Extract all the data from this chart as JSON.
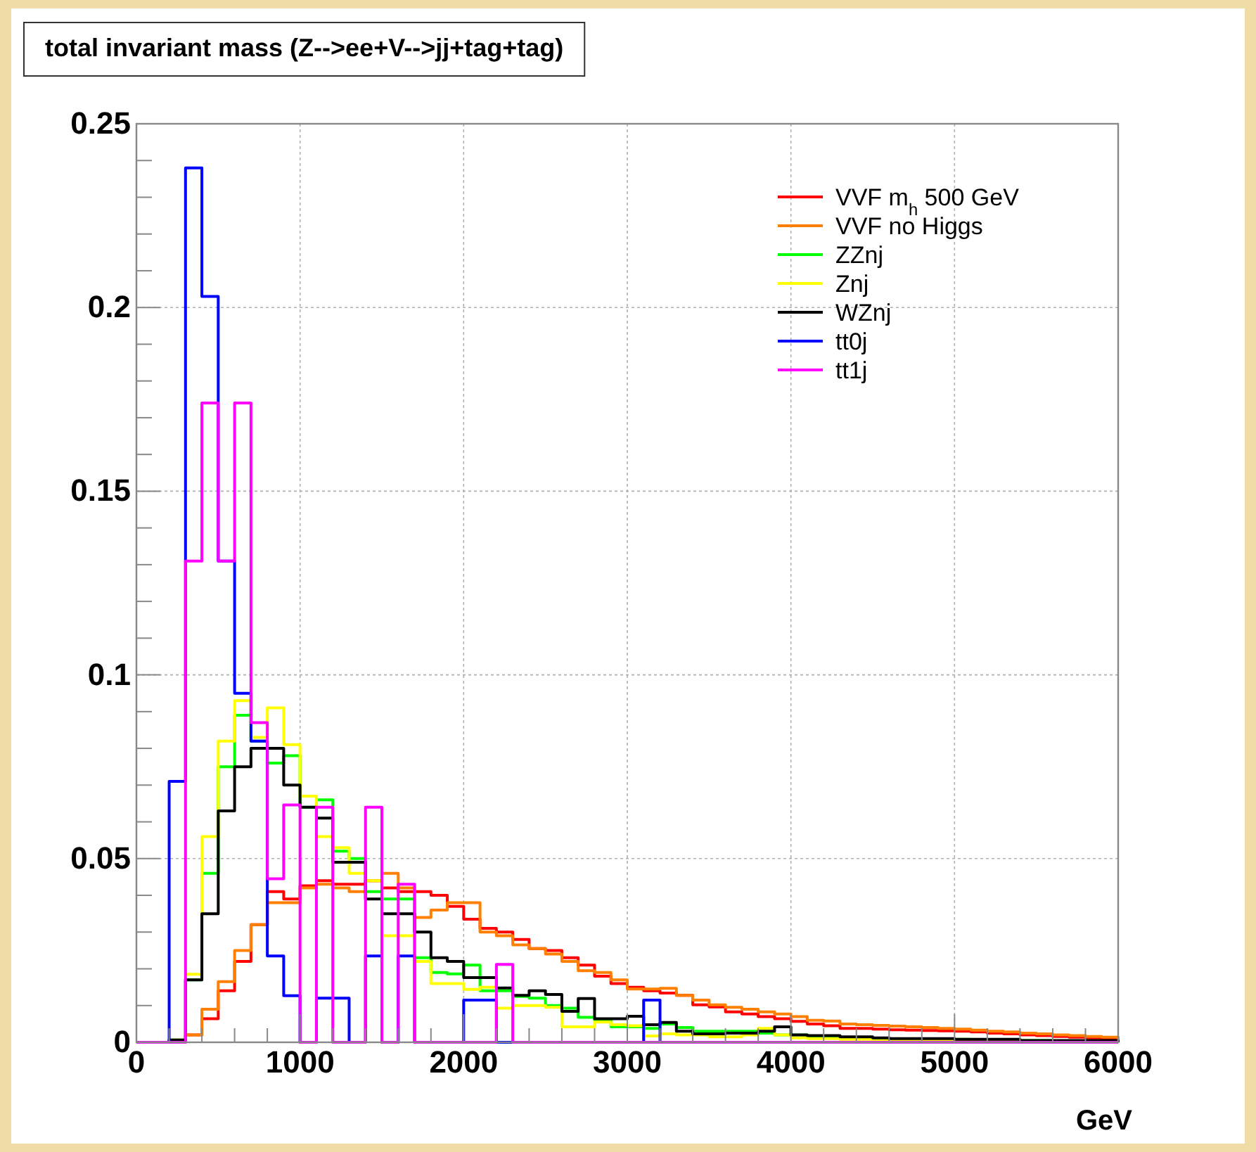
{
  "chart_data": {
    "type": "histogram",
    "title": "total invariant mass (Z-->ee+V-->jj+tag+tag)",
    "xlabel": "GeV",
    "bins": [
      0,
      100,
      200,
      300,
      400,
      500,
      600,
      700,
      800,
      900,
      1000,
      1100,
      1200,
      1300,
      1400,
      1500,
      1600,
      1700,
      1800,
      1900,
      2000,
      2100,
      2200,
      2300,
      2400,
      2500,
      2600,
      2700,
      2800,
      2900,
      3000,
      3100,
      3200,
      3300,
      3400,
      3500,
      3600,
      3700,
      3800,
      3900,
      4000,
      4100,
      4200,
      4300,
      4400,
      4500,
      4600,
      4700,
      4800,
      4900,
      5000,
      5100,
      5200,
      5300,
      5400,
      5500,
      5600,
      5700,
      5800,
      5900,
      6000
    ],
    "xlim": [
      0,
      6000
    ],
    "ylim": [
      0,
      0.25
    ],
    "xticks": [
      0,
      {
        "value": 200,
        "label": null
      },
      {
        "value": 400,
        "label": null
      },
      {
        "value": 600,
        "label": null
      },
      {
        "value": 800,
        "label": null
      },
      1000,
      {
        "value": 1200,
        "label": null
      },
      {
        "value": 1400,
        "label": null
      },
      {
        "value": 1600,
        "label": null
      },
      {
        "value": 1800,
        "label": null
      },
      2000,
      {
        "value": 2200,
        "label": null
      },
      {
        "value": 2400,
        "label": null
      },
      {
        "value": 2600,
        "label": null
      },
      {
        "value": 2800,
        "label": null
      },
      3000,
      {
        "value": 3200,
        "label": null
      },
      {
        "value": 3400,
        "label": null
      },
      {
        "value": 3600,
        "label": null
      },
      {
        "value": 3800,
        "label": null
      },
      4000,
      {
        "value": 4200,
        "label": null
      },
      {
        "value": 4400,
        "label": null
      },
      {
        "value": 4600,
        "label": null
      },
      {
        "value": 4800,
        "label": null
      },
      5000,
      {
        "value": 5200,
        "label": null
      },
      {
        "value": 5400,
        "label": null
      },
      {
        "value": 5600,
        "label": null
      },
      {
        "value": 5800,
        "label": null
      },
      6000
    ],
    "yticks": [
      0,
      {
        "value": 0.01,
        "label": null
      },
      {
        "value": 0.02,
        "label": null
      },
      {
        "value": 0.03,
        "label": null
      },
      {
        "value": 0.04,
        "label": null
      },
      0.05,
      {
        "value": 0.06,
        "label": null
      },
      {
        "value": 0.07,
        "label": null
      },
      {
        "value": 0.08,
        "label": null
      },
      {
        "value": 0.09,
        "label": null
      },
      0.1,
      {
        "value": 0.11,
        "label": null
      },
      {
        "value": 0.12,
        "label": null
      },
      {
        "value": 0.13,
        "label": null
      },
      {
        "value": 0.14,
        "label": null
      },
      0.15,
      {
        "value": 0.16,
        "label": null
      },
      {
        "value": 0.17,
        "label": null
      },
      {
        "value": 0.18,
        "label": null
      },
      {
        "value": 0.19,
        "label": null
      },
      0.2,
      {
        "value": 0.21,
        "label": null
      },
      {
        "value": 0.22,
        "label": null
      },
      {
        "value": 0.23,
        "label": null
      },
      {
        "value": 0.24,
        "label": null
      },
      0.25
    ],
    "grid": true,
    "legend": "top right",
    "series": [
      {
        "name": "VVF m$_{h}$ 500 GeV",
        "color": "#ff0000",
        "values": [
          0,
          0,
          0,
          0.002,
          0.0064,
          0.014,
          0.022,
          0.032,
          0.041,
          0.039,
          0.0426,
          0.044,
          0.043,
          0.043,
          0.044,
          0.042,
          0.041,
          0.041,
          0.04,
          0.037,
          0.0335,
          0.031,
          0.03,
          0.028,
          0.0255,
          0.025,
          0.023,
          0.021,
          0.018,
          0.016,
          0.015,
          0.014,
          0.0134,
          0.0128,
          0.0102,
          0.0096,
          0.0083,
          0.0077,
          0.007,
          0.0064,
          0.0057,
          0.005,
          0.0045,
          0.0038,
          0.0038,
          0.0036,
          0.0034,
          0.0033,
          0.0032,
          0.0031,
          0.003,
          0.0028,
          0.0025,
          0.0023,
          0.002,
          0.0018,
          0.0016,
          0.0014,
          0.0012,
          0.001
        ]
      },
      {
        "name": "VVF no Higgs",
        "color": "#ff8000",
        "values": [
          0,
          0,
          0,
          0.002,
          0.009,
          0.0165,
          0.025,
          0.032,
          0.038,
          0.038,
          0.042,
          0.043,
          0.042,
          0.041,
          0.044,
          0.046,
          0.042,
          0.034,
          0.036,
          0.038,
          0.038,
          0.03,
          0.029,
          0.0265,
          0.0255,
          0.024,
          0.022,
          0.0195,
          0.019,
          0.017,
          0.0145,
          0.0145,
          0.0147,
          0.0128,
          0.0115,
          0.0102,
          0.0095,
          0.009,
          0.0083,
          0.0077,
          0.007,
          0.006,
          0.0058,
          0.005,
          0.0048,
          0.0046,
          0.0044,
          0.0042,
          0.004,
          0.0038,
          0.0036,
          0.0033,
          0.003,
          0.0028,
          0.0025,
          0.0023,
          0.002,
          0.0018,
          0.0016,
          0.0014
        ]
      },
      {
        "name": "ZZnj",
        "color": "#00ff00",
        "values": [
          0,
          0,
          0.0006,
          0.017,
          0.046,
          0.075,
          0.089,
          0.082,
          0.076,
          0.078,
          0.064,
          0.066,
          0.052,
          0.05,
          0.041,
          0.039,
          0.039,
          0.023,
          0.019,
          0.0186,
          0.021,
          0.014,
          0.014,
          0.0125,
          0.012,
          0.01,
          0.0093,
          0.0068,
          0.006,
          0.0042,
          0.0042,
          0.0038,
          0.005,
          0.004,
          0.003,
          0.003,
          0.003,
          0.003,
          0.0025,
          0.002,
          0.002,
          0.0015,
          0.0015,
          0.001,
          0.001,
          0.001,
          0.0008,
          0.0008,
          0.0008,
          0.0008,
          0.0008,
          0.0005,
          0.0005,
          0.0005,
          0.0005,
          0.0005,
          0.0003,
          0.0003,
          0.0003,
          0.0003
        ]
      },
      {
        "name": "Znj",
        "color": "#ffff00",
        "values": [
          0,
          0,
          0.0006,
          0.0185,
          0.056,
          0.082,
          0.093,
          0.083,
          0.091,
          0.081,
          0.067,
          0.056,
          0.053,
          0.046,
          0.044,
          0.029,
          0.029,
          0.022,
          0.016,
          0.016,
          0.0144,
          0.015,
          0.0093,
          0.01,
          0.01,
          0.0095,
          0.0042,
          0.0042,
          0.0055,
          0.0048,
          0.0045,
          0.0017,
          0.0023,
          0.002,
          0.002,
          0.0015,
          0.0015,
          0.002,
          0.0038,
          0.002,
          0.0012,
          0.001,
          0.001,
          0.0008,
          0.0008,
          0.0005,
          0.0005,
          0.0005,
          0.0005,
          0.0005,
          0.0005,
          0.0003,
          0.0003,
          0.0003,
          0.0003,
          0.0003,
          0.0003,
          0.0003,
          0.0003,
          0.0003
        ]
      },
      {
        "name": "WZnj",
        "color": "#000000",
        "values": [
          0,
          0,
          0.0006,
          0.017,
          0.035,
          0.063,
          0.075,
          0.08,
          0.08,
          0.07,
          0.064,
          0.061,
          0.049,
          0.049,
          0.039,
          0.035,
          0.035,
          0.03,
          0.023,
          0.022,
          0.0176,
          0.0176,
          0.0148,
          0.0128,
          0.014,
          0.013,
          0.0084,
          0.0119,
          0.0064,
          0.0064,
          0.0071,
          0.0048,
          0.0054,
          0.003,
          0.0023,
          0.0023,
          0.0025,
          0.0025,
          0.003,
          0.0042,
          0.002,
          0.0018,
          0.0018,
          0.0015,
          0.0015,
          0.0012,
          0.001,
          0.001,
          0.001,
          0.001,
          0.0008,
          0.0008,
          0.0008,
          0.0008,
          0.0005,
          0.0005,
          0.0005,
          0.0005,
          0.0005,
          0.0005
        ]
      },
      {
        "name": "tt0j",
        "color": "#0000ff",
        "values": [
          0,
          0,
          0.071,
          0.238,
          0.203,
          0.131,
          0.095,
          0.082,
          0.0235,
          0.0127,
          0,
          0.012,
          0.012,
          0,
          0.0235,
          0,
          0.0235,
          0,
          0,
          0,
          0.0115,
          0.0115,
          0,
          0,
          0,
          0,
          0,
          0,
          0,
          0,
          0,
          0.0115,
          0,
          0,
          0,
          0,
          0,
          0,
          0,
          0,
          0,
          0,
          0,
          0,
          0,
          0,
          0,
          0,
          0,
          0,
          0,
          0,
          0,
          0,
          0,
          0,
          0,
          0,
          0,
          0
        ]
      },
      {
        "name": "tt1j",
        "color": "#ff00ff",
        "values": [
          0,
          0,
          0,
          0.131,
          0.174,
          0.131,
          0.174,
          0.087,
          0.0445,
          0.0646,
          0,
          0.064,
          0,
          0,
          0.064,
          0,
          0.043,
          0,
          0,
          0,
          0,
          0,
          0.0212,
          0,
          0,
          0,
          0,
          0,
          0,
          0,
          0,
          0,
          0,
          0,
          0,
          0,
          0,
          0,
          0,
          0,
          0,
          0,
          0,
          0,
          0,
          0,
          0,
          0,
          0,
          0,
          0,
          0,
          0,
          0,
          0,
          0,
          0,
          0,
          0,
          0
        ]
      }
    ]
  }
}
